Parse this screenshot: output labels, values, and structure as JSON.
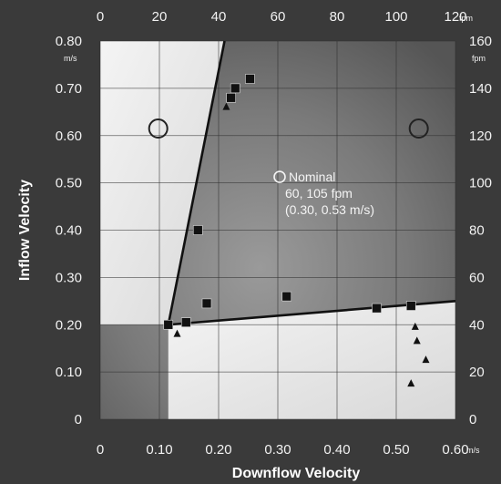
{
  "chart_data": {
    "type": "scatter",
    "xlabel": "Downflow Velocity",
    "ylabel": "Inflow Velocity",
    "x_unit": "m/s",
    "y_unit": "m/s",
    "x2_unit": "fpm",
    "y2_unit": "fpm",
    "xlim": [
      0,
      0.6
    ],
    "ylim": [
      0,
      0.8
    ],
    "x2lim": [
      0,
      120
    ],
    "y2lim": [
      0,
      160
    ],
    "grid": true,
    "x_ticks": [
      "0",
      "0.10",
      "0.20",
      "0.30",
      "0.40",
      "0.50",
      "0.60"
    ],
    "y_ticks": [
      "0",
      "0.10",
      "0.20",
      "0.30",
      "0.40",
      "0.50",
      "0.60",
      "0.70",
      "0.80"
    ],
    "x2_ticks": [
      "0",
      "20",
      "40",
      "60",
      "80",
      "100",
      "120"
    ],
    "y2_ticks": [
      "0",
      "20",
      "40",
      "60",
      "80",
      "100",
      "120",
      "140",
      "160"
    ],
    "boundary_lines": [
      {
        "x": [
          0.115,
          0.21
        ],
        "y": [
          0.2,
          0.8
        ]
      },
      {
        "x": [
          0.115,
          0.6
        ],
        "y": [
          0.2,
          0.25
        ]
      }
    ],
    "squares": {
      "x": [
        0.115,
        0.145,
        0.165,
        0.18,
        0.221,
        0.228,
        0.253,
        0.315,
        0.467,
        0.525
      ],
      "y": [
        0.2,
        0.205,
        0.4,
        0.245,
        0.68,
        0.7,
        0.72,
        0.26,
        0.235,
        0.24
      ]
    },
    "triangles": {
      "x": [
        0.213,
        0.13,
        0.532,
        0.535,
        0.55,
        0.525
      ],
      "y": [
        0.66,
        0.18,
        0.195,
        0.165,
        0.125,
        0.075
      ]
    },
    "circles": {
      "x": [
        0.098,
        0.538
      ],
      "y": [
        0.615,
        0.615
      ]
    },
    "nominal_point": {
      "x": 0.3,
      "y": 0.53
    },
    "annotation": {
      "line1": "Nominal",
      "line2": "60, 105 fpm",
      "line3": "(0.30, 0.53 m/s)"
    }
  }
}
